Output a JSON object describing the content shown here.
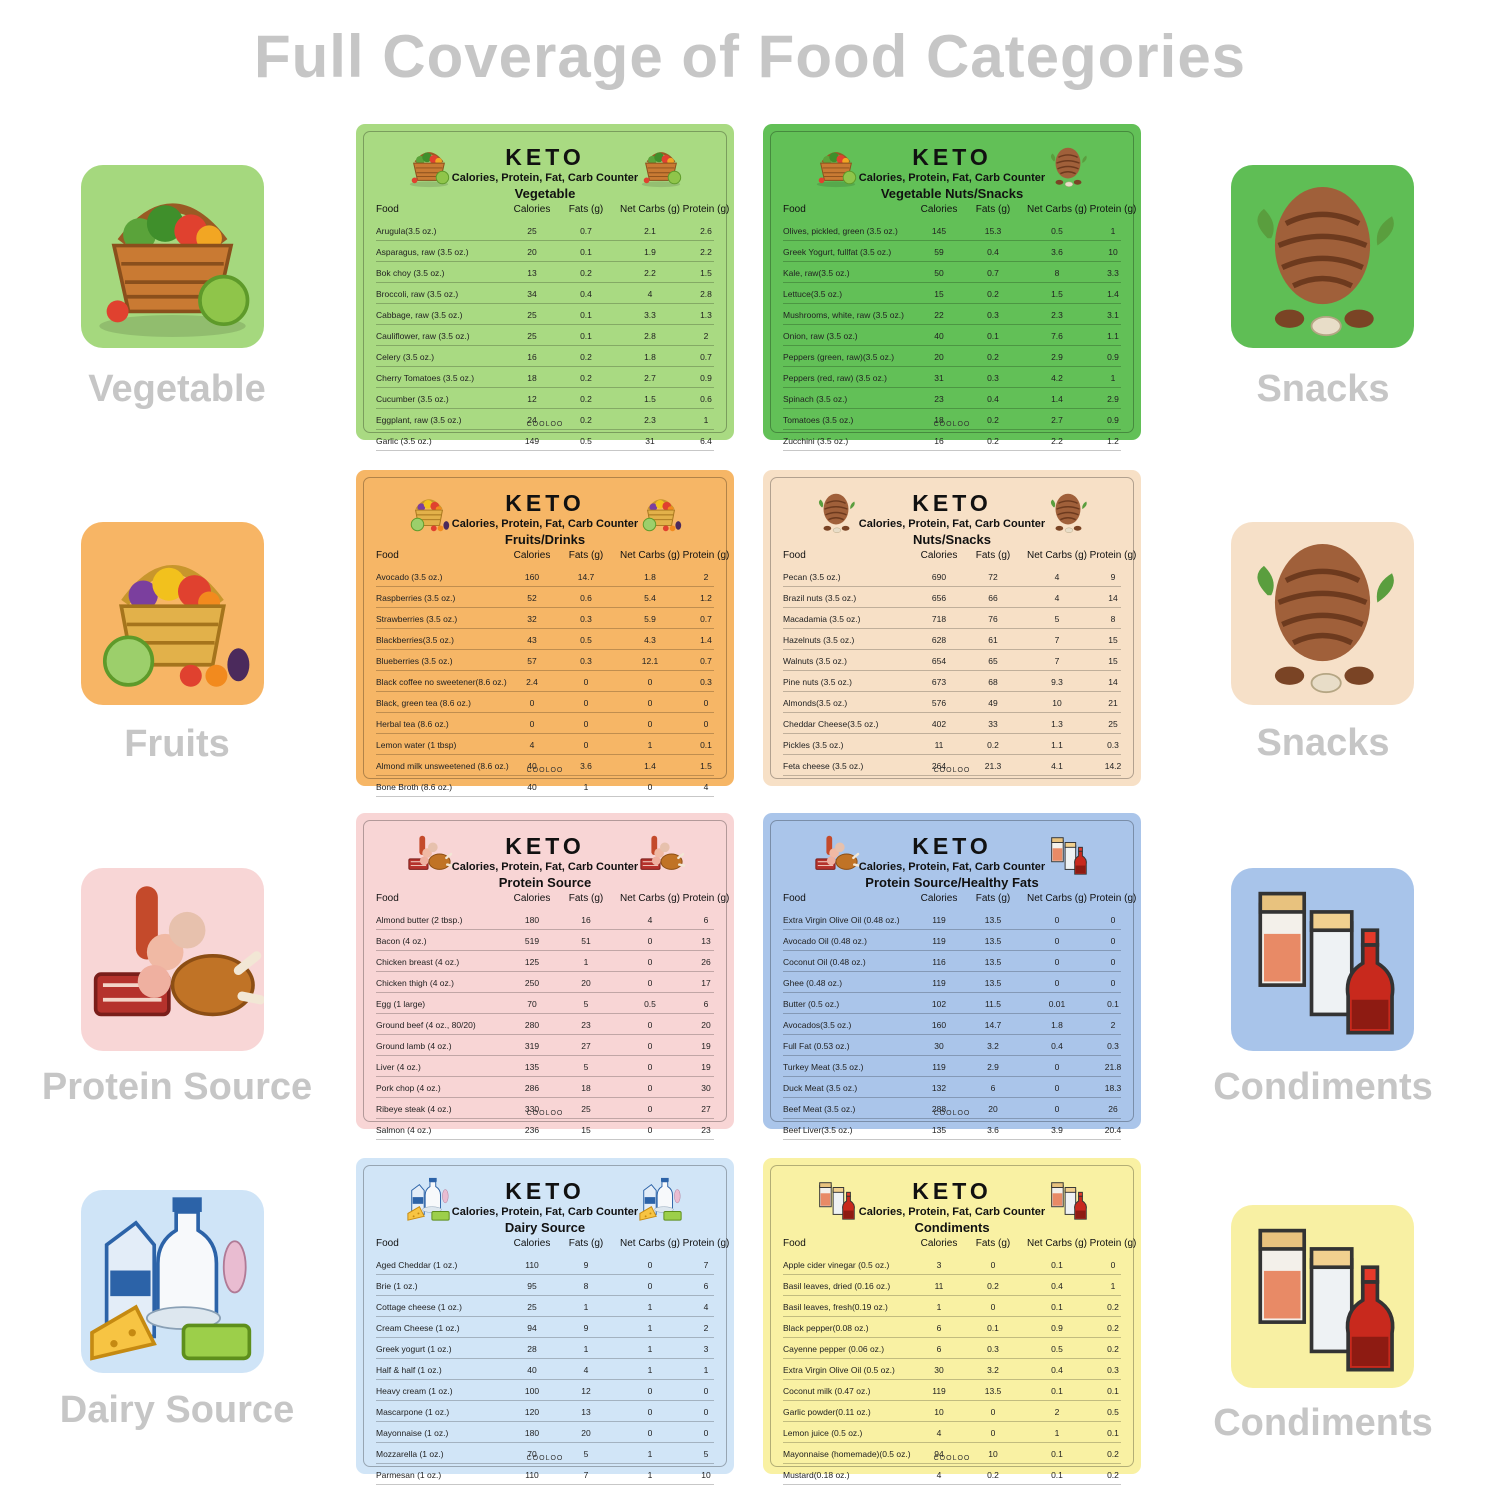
{
  "title": "Full Coverage of Food Categories",
  "left_tiles": [
    {
      "label": "Vegetable",
      "bg": "#a5d87e"
    },
    {
      "label": "Fruits",
      "bg": "#f7b565"
    },
    {
      "label": "Protein Source",
      "bg": "#f8d6d6"
    },
    {
      "label": "Dairy Source",
      "bg": "#cfe4f7"
    }
  ],
  "right_tiles": [
    {
      "label": "Snacks",
      "bg": "#5fbe55"
    },
    {
      "label": "Snacks",
      "bg": "#f6e0c8"
    },
    {
      "label": "Condiments",
      "bg": "#a8c4ea"
    },
    {
      "label": "Condiments",
      "bg": "#f8f0a3"
    }
  ],
  "columns": [
    "Food",
    "Calories",
    "Fats (g)",
    "Net Carbs (g)",
    "Protein (g)"
  ],
  "card_heading": "KETO",
  "card_subtitle": "Calories, Protein, Fat, Carb Counter",
  "brand": "COOLOO",
  "cards": [
    {
      "category": "Vegetable",
      "bg": "#a9da82",
      "icons": [
        "vegetable-basket-icon",
        "vegetable-basket-icon"
      ],
      "rows": [
        [
          "Arugula(3.5 oz.)",
          "25",
          "0.7",
          "2.1",
          "2.6"
        ],
        [
          "Asparagus, raw (3.5 oz.)",
          "20",
          "0.1",
          "1.9",
          "2.2"
        ],
        [
          "Bok choy (3.5 oz.)",
          "13",
          "0.2",
          "2.2",
          "1.5"
        ],
        [
          "Broccoli, raw (3.5 oz.)",
          "34",
          "0.4",
          "4",
          "2.8"
        ],
        [
          "Cabbage, raw (3.5 oz.)",
          "25",
          "0.1",
          "3.3",
          "1.3"
        ],
        [
          "Cauliflower, raw (3.5 oz.)",
          "25",
          "0.1",
          "2.8",
          "2"
        ],
        [
          "Celery (3.5 oz.)",
          "16",
          "0.2",
          "1.8",
          "0.7"
        ],
        [
          "Cherry Tomatoes (3.5 oz.)",
          "18",
          "0.2",
          "2.7",
          "0.9"
        ],
        [
          "Cucumber (3.5 oz.)",
          "12",
          "0.2",
          "1.5",
          "0.6"
        ],
        [
          "Eggplant, raw (3.5 oz.)",
          "24",
          "0.2",
          "2.3",
          "1"
        ],
        [
          "Garlic (3.5 oz.)",
          "149",
          "0.5",
          "31",
          "6.4"
        ]
      ]
    },
    {
      "category": "Vegetable  Nuts/Snacks",
      "bg": "#62c057",
      "icons": [
        "vegetable-basket-icon",
        "pine-cone-nuts-icon"
      ],
      "rows": [
        [
          "Olives, pickled, green (3.5 oz.)",
          "145",
          "15.3",
          "0.5",
          "1"
        ],
        [
          "Greek Yogurt, fullfat (3.5 oz.)",
          "59",
          "0.4",
          "3.6",
          "10"
        ],
        [
          "Kale, raw(3.5 oz.)",
          "50",
          "0.7",
          "8",
          "3.3"
        ],
        [
          "Lettuce(3.5 oz.)",
          "15",
          "0.2",
          "1.5",
          "1.4"
        ],
        [
          "Mushrooms, white, raw (3.5 oz.)",
          "22",
          "0.3",
          "2.3",
          "3.1"
        ],
        [
          "Onion, raw (3.5 oz.)",
          "40",
          "0.1",
          "7.6",
          "1.1"
        ],
        [
          "Peppers (green, raw)(3.5 oz.)",
          "20",
          "0.2",
          "2.9",
          "0.9"
        ],
        [
          "Peppers (red, raw) (3.5 oz.)",
          "31",
          "0.3",
          "4.2",
          "1"
        ],
        [
          "Spinach (3.5 oz.)",
          "23",
          "0.4",
          "1.4",
          "2.9"
        ],
        [
          "Tomatoes (3.5 oz.)",
          "18",
          "0.2",
          "2.7",
          "0.9"
        ],
        [
          "Zucchini (3.5 oz.)",
          "16",
          "0.2",
          "2.2",
          "1.2"
        ]
      ]
    },
    {
      "category": "Fruits/Drinks",
      "bg": "#f6b666",
      "icons": [
        "fruit-basket-icon",
        "fruit-basket-icon"
      ],
      "rows": [
        [
          "Avocado (3.5 oz.)",
          "160",
          "14.7",
          "1.8",
          "2"
        ],
        [
          "Raspberries (3.5 oz.)",
          "52",
          "0.6",
          "5.4",
          "1.2"
        ],
        [
          "Strawberries (3.5 oz.)",
          "32",
          "0.3",
          "5.9",
          "0.7"
        ],
        [
          "Blackberries(3.5 oz.)",
          "43",
          "0.5",
          "4.3",
          "1.4"
        ],
        [
          "Blueberries (3.5 oz.)",
          "57",
          "0.3",
          "12.1",
          "0.7"
        ],
        [
          "Black coffee no sweetener(8.6 oz.)",
          "2.4",
          "0",
          "0",
          "0.3"
        ],
        [
          "Black, green tea (8.6 oz.)",
          "0",
          "0",
          "0",
          "0"
        ],
        [
          "Herbal tea (8.6 oz.)",
          "0",
          "0",
          "0",
          "0"
        ],
        [
          "Lemon water (1 tbsp)",
          "4",
          "0",
          "1",
          "0.1"
        ],
        [
          "Almond milk unsweetened (8.6 oz.)",
          "40",
          "3.6",
          "1.4",
          "1.5"
        ],
        [
          "Bone Broth (8.6 oz.)",
          "40",
          "1",
          "0",
          "4"
        ]
      ]
    },
    {
      "category": "Nuts/Snacks",
      "bg": "#f7e0c6",
      "icons": [
        "pine-cone-nuts-icon",
        "pine-cone-nuts-icon"
      ],
      "rows": [
        [
          "Pecan  (3.5 oz.)",
          "690",
          "72",
          "4",
          "9"
        ],
        [
          "Brazil nuts (3.5 oz.)",
          "656",
          "66",
          "4",
          "14"
        ],
        [
          "Macadamia (3.5 oz.)",
          "718",
          "76",
          "5",
          "8"
        ],
        [
          "Hazelnuts (3.5 oz.)",
          "628",
          "61",
          "7",
          "15"
        ],
        [
          "Walnuts (3.5 oz.)",
          "654",
          "65",
          "7",
          "15"
        ],
        [
          "Pine nuts (3.5 oz.)",
          "673",
          "68",
          "9.3",
          "14"
        ],
        [
          "Almonds(3.5 oz.)",
          "576",
          "49",
          "10",
          "21"
        ],
        [
          "Cheddar Cheese(3.5 oz.)",
          "402",
          "33",
          "1.3",
          "25"
        ],
        [
          "Pickles (3.5 oz.)",
          "11",
          "0.2",
          "1.1",
          "0.3"
        ],
        [
          "Feta cheese (3.5 oz.)",
          "264",
          "21.3",
          "4.1",
          "14.2"
        ]
      ]
    },
    {
      "category": "Protein  Source",
      "bg": "#f8d5d5",
      "icons": [
        "meat-platter-icon",
        "meat-platter-icon"
      ],
      "rows": [
        [
          "Almond butter (2 tbsp.)",
          "180",
          "16",
          "4",
          "6"
        ],
        [
          "Bacon (4 oz.)",
          "519",
          "51",
          "0",
          "13"
        ],
        [
          "Chicken breast (4 oz.)",
          "125",
          "1",
          "0",
          "26"
        ],
        [
          "Chicken thigh (4 oz.)",
          "250",
          "20",
          "0",
          "17"
        ],
        [
          "Egg (1 large)",
          "70",
          "5",
          "0.5",
          "6"
        ],
        [
          "Ground beef (4 oz., 80/20)",
          "280",
          "23",
          "0",
          "20"
        ],
        [
          "Ground lamb (4 oz.)",
          "319",
          "27",
          "0",
          "19"
        ],
        [
          "Liver (4 oz.)",
          "135",
          "5",
          "0",
          "19"
        ],
        [
          "Pork chop (4 oz.)",
          "286",
          "18",
          "0",
          "30"
        ],
        [
          "Ribeye steak (4 oz.)",
          "330",
          "25",
          "0",
          "27"
        ],
        [
          "Salmon (4 oz.)",
          "236",
          "15",
          "0",
          "23"
        ]
      ]
    },
    {
      "category": "Protein  Source/Healthy Fats",
      "bg": "#aac5ea",
      "icons": [
        "meat-platter-icon",
        "condiment-bottles-icon"
      ],
      "rows": [
        [
          "Extra Virgin Olive Oil (0.48 oz.)",
          "119",
          "13.5",
          "0",
          "0"
        ],
        [
          "Avocado Oil (0.48 oz.)",
          "119",
          "13.5",
          "0",
          "0"
        ],
        [
          "Coconut Oil (0.48 oz.)",
          "116",
          "13.5",
          "0",
          "0"
        ],
        [
          "Ghee (0.48 oz.)",
          "119",
          "13.5",
          "0",
          "0"
        ],
        [
          "Butter (0.5 oz.)",
          "102",
          "11.5",
          "0.01",
          "0.1"
        ],
        [
          "Avocados(3.5 oz.)",
          "160",
          "14.7",
          "1.8",
          "2"
        ],
        [
          "Full Fat (0.53 oz.)",
          "30",
          "3.2",
          "0.4",
          "0.3"
        ],
        [
          "Turkey Meat (3.5 oz.)",
          "119",
          "2.9",
          "0",
          "21.8"
        ],
        [
          "Duck Meat (3.5 oz.)",
          "132",
          "6",
          "0",
          "18.3"
        ],
        [
          "Beef Meat (3.5 oz.)",
          "288",
          "20",
          "0",
          "26"
        ],
        [
          "Beef Liver(3.5 oz.)",
          "135",
          "3.6",
          "3.9",
          "20.4"
        ]
      ]
    },
    {
      "category": "Dairy  Source",
      "bg": "#d1e5f7",
      "icons": [
        "dairy-products-icon",
        "dairy-products-icon"
      ],
      "rows": [
        [
          "Aged Cheddar (1 oz.)",
          "110",
          "9",
          "0",
          "7"
        ],
        [
          "Brie (1 oz.)",
          "95",
          "8",
          "0",
          "6"
        ],
        [
          "Cottage cheese (1 oz.)",
          "25",
          "1",
          "1",
          "4"
        ],
        [
          "Cream Cheese (1 oz.)",
          "94",
          "9",
          "1",
          "2"
        ],
        [
          "Greek yogurt (1 oz.)",
          "28",
          "1",
          "1",
          "3"
        ],
        [
          "Half & half (1 oz.)",
          "40",
          "4",
          "1",
          "1"
        ],
        [
          "Heavy cream (1 oz.)",
          "100",
          "12",
          "0",
          "0"
        ],
        [
          "Mascarpone (1 oz.)",
          "120",
          "13",
          "0",
          "0"
        ],
        [
          "Mayonnaise (1 oz.)",
          "180",
          "20",
          "0",
          "0"
        ],
        [
          "Mozzarella (1 oz.)",
          "70",
          "5",
          "1",
          "5"
        ],
        [
          "Parmesan (1 oz.)",
          "110",
          "7",
          "1",
          "10"
        ]
      ]
    },
    {
      "category": "Condiments",
      "bg": "#f9f1a3",
      "icons": [
        "condiment-bottles-icon",
        "condiment-bottles-icon"
      ],
      "rows": [
        [
          "Apple cider vinegar (0.5 oz.)",
          "3",
          "0",
          "0.1",
          "0"
        ],
        [
          "Basil leaves, dried (0.16 oz.)",
          "11",
          "0.2",
          "0.4",
          "1"
        ],
        [
          "Basil leaves, fresh(0.19 oz.)",
          "1",
          "0",
          "0.1",
          "0.2"
        ],
        [
          "Black pepper(0.08 oz.)",
          "6",
          "0.1",
          "0.9",
          "0.2"
        ],
        [
          "Cayenne pepper (0.06 oz.)",
          "6",
          "0.3",
          "0.5",
          "0.2"
        ],
        [
          "Extra Virgin Olive Oil (0.5 oz.)",
          "30",
          "3.2",
          "0.4",
          "0.3"
        ],
        [
          "Coconut milk (0.47 oz.)",
          "119",
          "13.5",
          "0.1",
          "0.1"
        ],
        [
          "Garlic powder(0.11 oz.)",
          "10",
          "0",
          "2",
          "0.5"
        ],
        [
          "Lemon juice (0.5 oz.)",
          "4",
          "0",
          "1",
          "0.1"
        ],
        [
          "Mayonnaise (homemade)(0.5 oz.)",
          "94",
          "10",
          "0.1",
          "0.2"
        ],
        [
          "Mustard(0.18 oz.)",
          "4",
          "0.2",
          "0.1",
          "0.2"
        ]
      ]
    }
  ]
}
